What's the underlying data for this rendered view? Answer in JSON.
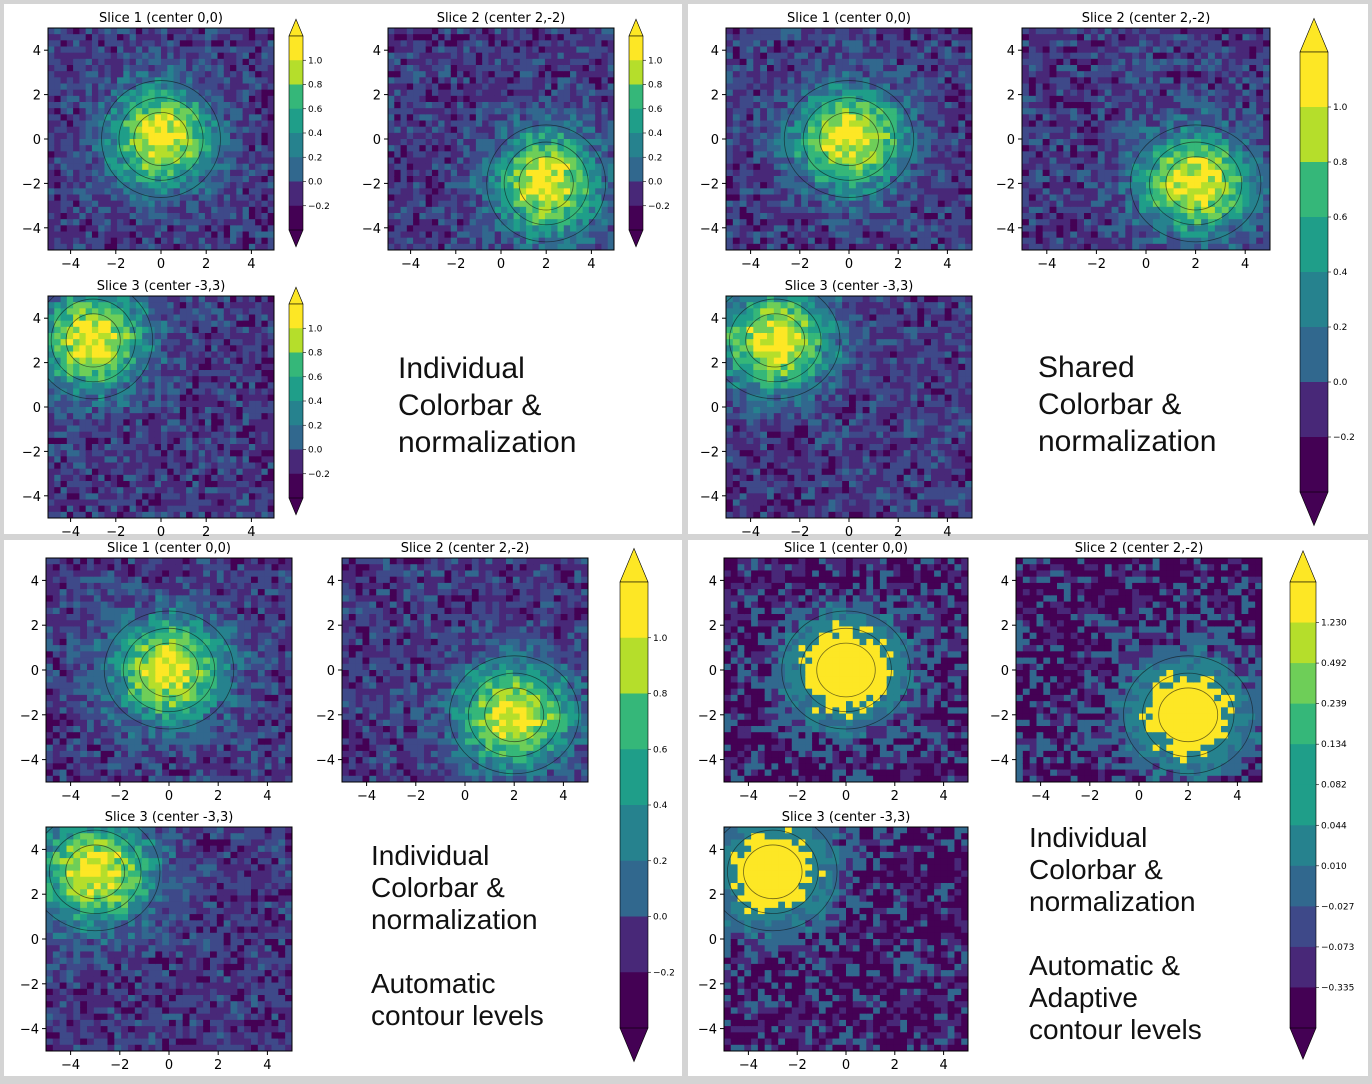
{
  "colors": {
    "viridis": [
      "#440154",
      "#482878",
      "#3e4989",
      "#31688e",
      "#26828e",
      "#1f9e89",
      "#35b779",
      "#6ece58",
      "#b5de2b",
      "#fde725"
    ],
    "panel_background": "#ffffff",
    "divider": "#cfcfcf"
  },
  "panels": [
    {
      "id": "top-left",
      "note": "Individual\nColorbar &\nnormalization",
      "colorbar_mode": "individual",
      "contour_mode": "fixed"
    },
    {
      "id": "top-right",
      "note": "Shared\nColorbar &\nnormalization",
      "colorbar_mode": "shared",
      "contour_mode": "fixed"
    },
    {
      "id": "bottom-left",
      "note": "Individual\nColorbar &\nnormalization\n\nAutomatic\ncontour levels",
      "colorbar_mode": "shared",
      "contour_mode": "automatic"
    },
    {
      "id": "bottom-right",
      "note": "Individual\nColorbar &\nnormalization\n\nAutomatic &\nAdaptive\ncontour levels",
      "colorbar_mode": "shared",
      "contour_mode": "adaptive"
    }
  ],
  "chart_data": [
    {
      "type": "heatmap",
      "panel": "top-left",
      "title": "Slice 1 (center 0,0)",
      "center": [
        0,
        0
      ],
      "xlim": [
        -5,
        5
      ],
      "ylim": [
        -5,
        5
      ],
      "xticks": [
        -4,
        -2,
        0,
        2,
        4
      ],
      "yticks": [
        -4,
        -2,
        0,
        2,
        4
      ],
      "colorbar": {
        "ticks": [
          1.0,
          0.8,
          0.6,
          0.4,
          0.2,
          0.0,
          -0.2
        ],
        "tick_labels": [
          "1.0",
          "0.8",
          "0.6",
          "0.4",
          "0.2",
          "0.0",
          "−0.2"
        ],
        "extend": "both"
      }
    },
    {
      "type": "heatmap",
      "panel": "top-left",
      "title": "Slice 2 (center 2,-2)",
      "center": [
        2,
        -2
      ],
      "xlim": [
        -5,
        5
      ],
      "ylim": [
        -5,
        5
      ],
      "xticks": [
        -4,
        -2,
        0,
        2,
        4
      ],
      "yticks": [
        -4,
        -2,
        0,
        2,
        4
      ],
      "colorbar": {
        "ticks": [
          1.0,
          0.8,
          0.6,
          0.4,
          0.2,
          0.0,
          -0.2
        ],
        "tick_labels": [
          "1.0",
          "0.8",
          "0.6",
          "0.4",
          "0.2",
          "0.0",
          "−0.2"
        ],
        "extend": "both"
      }
    },
    {
      "type": "heatmap",
      "panel": "top-left",
      "title": "Slice 3 (center -3,3)",
      "center": [
        -3,
        3
      ],
      "xlim": [
        -5,
        5
      ],
      "ylim": [
        -5,
        5
      ],
      "xticks": [
        -4,
        -2,
        0,
        2,
        4
      ],
      "yticks": [
        -4,
        -2,
        0,
        2,
        4
      ],
      "colorbar": {
        "ticks": [
          1.0,
          0.8,
          0.6,
          0.4,
          0.2,
          0.0,
          -0.2
        ],
        "tick_labels": [
          "1.0",
          "0.8",
          "0.6",
          "0.4",
          "0.2",
          "0.0",
          "−0.2"
        ],
        "extend": "both"
      }
    },
    {
      "type": "heatmap",
      "panel": "top-right",
      "title": "Slice 1 (center 0,0)",
      "center": [
        0,
        0
      ],
      "xlim": [
        -5,
        5
      ],
      "ylim": [
        -5,
        5
      ],
      "xticks": [
        -4,
        -2,
        0,
        2,
        4
      ],
      "yticks": [
        -4,
        -2,
        0,
        2,
        4
      ]
    },
    {
      "type": "heatmap",
      "panel": "top-right",
      "title": "Slice 2 (center 2,-2)",
      "center": [
        2,
        -2
      ],
      "xlim": [
        -5,
        5
      ],
      "ylim": [
        -5,
        5
      ],
      "xticks": [
        -4,
        -2,
        0,
        2,
        4
      ],
      "yticks": [
        -4,
        -2,
        0,
        2,
        4
      ]
    },
    {
      "type": "heatmap",
      "panel": "top-right",
      "title": "Slice 3 (center -3,3)",
      "center": [
        -3,
        3
      ],
      "xlim": [
        -5,
        5
      ],
      "ylim": [
        -5,
        5
      ],
      "xticks": [
        -4,
        -2,
        0,
        2,
        4
      ],
      "yticks": [
        -4,
        -2,
        0,
        2,
        4
      ]
    },
    {
      "type": "heatmap",
      "panel": "bottom-left",
      "title": "Slice 1 (center 0,0)",
      "center": [
        0,
        0
      ],
      "xlim": [
        -5,
        5
      ],
      "ylim": [
        -5,
        5
      ],
      "xticks": [
        -4,
        -2,
        0,
        2,
        4
      ],
      "yticks": [
        -4,
        -2,
        0,
        2,
        4
      ]
    },
    {
      "type": "heatmap",
      "panel": "bottom-left",
      "title": "Slice 2 (center 2,-2)",
      "center": [
        2,
        -2
      ],
      "xlim": [
        -5,
        5
      ],
      "ylim": [
        -5,
        5
      ],
      "xticks": [
        -4,
        -2,
        0,
        2,
        4
      ],
      "yticks": [
        -4,
        -2,
        0,
        2,
        4
      ]
    },
    {
      "type": "heatmap",
      "panel": "bottom-left",
      "title": "Slice 3 (center -3,3)",
      "center": [
        -3,
        3
      ],
      "xlim": [
        -5,
        5
      ],
      "ylim": [
        -5,
        5
      ],
      "xticks": [
        -4,
        -2,
        0,
        2,
        4
      ],
      "yticks": [
        -4,
        -2,
        0,
        2,
        4
      ]
    },
    {
      "type": "heatmap",
      "panel": "bottom-right",
      "title": "Slice 1 (center 0,0)",
      "center": [
        0,
        0
      ],
      "xlim": [
        -5,
        5
      ],
      "ylim": [
        -5,
        5
      ],
      "xticks": [
        -4,
        -2,
        0,
        2,
        4
      ],
      "yticks": [
        -4,
        -2,
        0,
        2,
        4
      ]
    },
    {
      "type": "heatmap",
      "panel": "bottom-right",
      "title": "Slice 2 (center 2,-2)",
      "center": [
        2,
        -2
      ],
      "xlim": [
        -5,
        5
      ],
      "ylim": [
        -5,
        5
      ],
      "xticks": [
        -4,
        -2,
        0,
        2,
        4
      ],
      "yticks": [
        -4,
        -2,
        0,
        2,
        4
      ]
    },
    {
      "type": "heatmap",
      "panel": "bottom-right",
      "title": "Slice 3 (center -3,3)",
      "center": [
        -3,
        3
      ],
      "xlim": [
        -5,
        5
      ],
      "ylim": [
        -5,
        5
      ],
      "xticks": [
        -4,
        -2,
        0,
        2,
        4
      ],
      "yticks": [
        -4,
        -2,
        0,
        2,
        4
      ]
    }
  ],
  "shared_colorbars": [
    {
      "panel": "top-right",
      "tick_labels": [
        "1.0",
        "0.8",
        "0.6",
        "0.4",
        "0.2",
        "0.0",
        "−0.2"
      ],
      "ticks": [
        1.0,
        0.8,
        0.6,
        0.4,
        0.2,
        0.0,
        -0.2
      ],
      "extend": "both"
    },
    {
      "panel": "bottom-left",
      "tick_labels": [
        "1.0",
        "0.8",
        "0.6",
        "0.4",
        "0.2",
        "0.0",
        "−0.2"
      ],
      "ticks": [
        1.0,
        0.8,
        0.6,
        0.4,
        0.2,
        0.0,
        -0.2
      ],
      "extend": "both"
    },
    {
      "panel": "bottom-right",
      "tick_labels": [
        "1.230",
        "0.492",
        "0.239",
        "0.134",
        "0.082",
        "0.044",
        "0.010",
        "−0.027",
        "−0.073",
        "−0.335"
      ],
      "ticks": [
        1.23,
        0.492,
        0.239,
        0.134,
        0.082,
        0.044,
        0.01,
        -0.027,
        -0.073,
        -0.335
      ],
      "extend": "both"
    }
  ]
}
